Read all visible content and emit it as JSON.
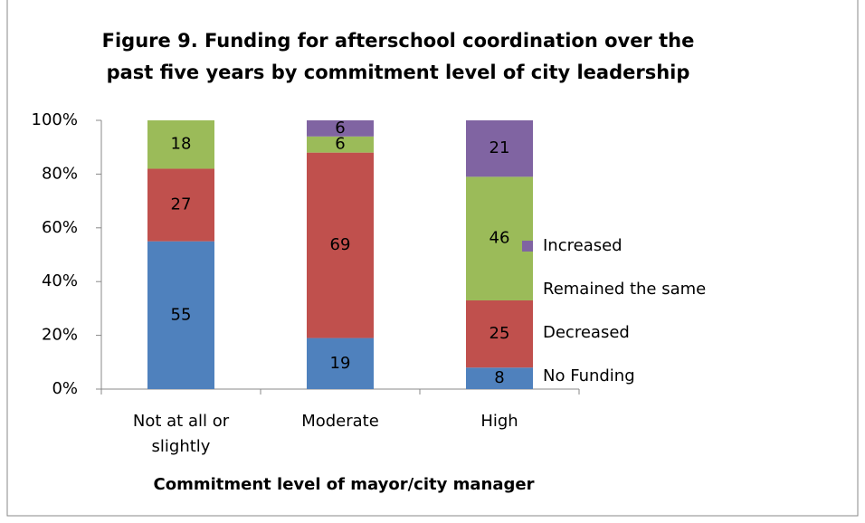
{
  "chart_data": {
    "type": "stacked_bar",
    "title": "Figure 9. Funding for afterschool coordination over the past five years by commitment level of city leadership",
    "x_label": "Commitment level of mayor/city manager",
    "categories": [
      "Not at all or slightly",
      "Moderate",
      "High"
    ],
    "series": [
      {
        "name": "No Funding",
        "color": "#4f81bd",
        "values": [
          55,
          19,
          8
        ]
      },
      {
        "name": "Decreased",
        "color": "#c0504d",
        "values": [
          27,
          69,
          25
        ]
      },
      {
        "name": "Remained the same",
        "color": "#9bbb59",
        "values": [
          18,
          6,
          46
        ]
      },
      {
        "name": "Increased",
        "color": "#8064a2",
        "values": [
          null,
          6,
          21
        ]
      }
    ],
    "ylim": [
      0,
      100
    ],
    "yticks": [
      {
        "value": 0,
        "label": "0%"
      },
      {
        "value": 20,
        "label": "20%"
      },
      {
        "value": 40,
        "label": "40%"
      },
      {
        "value": 60,
        "label": "60%"
      },
      {
        "value": 80,
        "label": "80%"
      },
      {
        "value": 100,
        "label": "100%"
      }
    ],
    "grid": false,
    "legend": "right"
  }
}
